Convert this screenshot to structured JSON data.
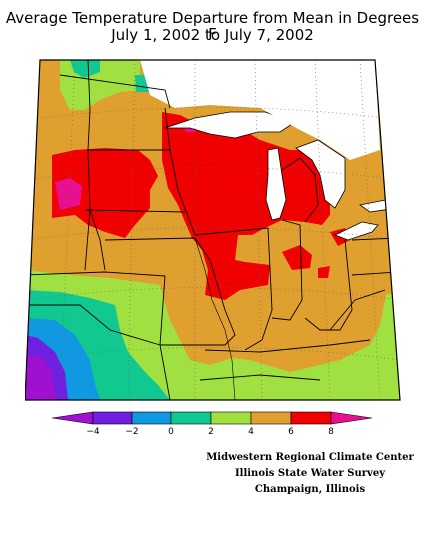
{
  "title": {
    "line1": "Average Temperature Departure from Mean in Degrees F",
    "line2": "July 1, 2002 to July 7, 2002"
  },
  "legend": {
    "ticks": [
      "−4",
      "−2",
      "0",
      "2",
      "4",
      "6",
      "8"
    ],
    "colors": [
      "#a010d0",
      "#7020e0",
      "#1098e0",
      "#10c890",
      "#a0e040",
      "#e0a030",
      "#f00000",
      "#e81090"
    ]
  },
  "colors": {
    "band_below_neg4": "#a010d0",
    "band_neg4_neg2": "#7020e0",
    "band_neg2_0": "#1098e0",
    "band_0_2": "#10c890",
    "band_2_4": "#a0e040",
    "band_4_6": "#e0a030",
    "band_6_8": "#f00000",
    "band_above_8": "#e81090",
    "lake": "#ffffff",
    "outline": "#000000"
  },
  "credits": {
    "line1": "Midwestern Regional Climate Center",
    "line2": "Illinois State Water Survey",
    "line3": "Champaign, Illinois"
  }
}
